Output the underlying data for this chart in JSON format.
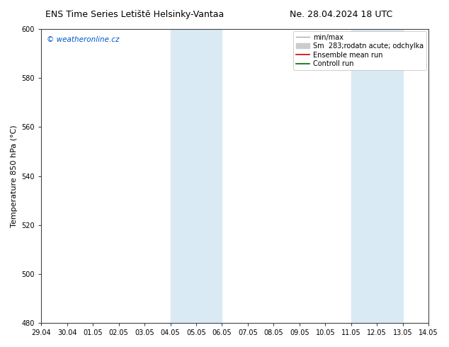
{
  "title_left": "ENS Time Series Letiště Helsinky-Vantaa",
  "title_right": "Ne. 28.04.2024 18 UTC",
  "ylabel": "Temperature 850 hPa (°C)",
  "watermark": "© weatheronline.cz",
  "watermark_color": "#0055cc",
  "ylim": [
    480,
    600
  ],
  "yticks": [
    480,
    500,
    520,
    540,
    560,
    580,
    600
  ],
  "x_labels": [
    "29.04",
    "30.04",
    "01.05",
    "02.05",
    "03.05",
    "04.05",
    "05.05",
    "06.05",
    "07.05",
    "08.05",
    "09.05",
    "10.05",
    "11.05",
    "12.05",
    "13.05",
    "14.05"
  ],
  "x_positions": [
    0,
    1,
    2,
    3,
    4,
    5,
    6,
    7,
    8,
    9,
    10,
    11,
    12,
    13,
    14,
    15
  ],
  "shaded_bands": [
    {
      "xmin": 5,
      "xmax": 7
    },
    {
      "xmin": 12,
      "xmax": 14
    }
  ],
  "shaded_color": "#daeaf5",
  "bg_color": "#ffffff",
  "legend_entries": [
    {
      "label": "min/max",
      "color": "#aaaaaa",
      "lw": 1.0,
      "style": "solid",
      "type": "line"
    },
    {
      "label": "Sm  283;rodatn acute; odchylka",
      "color": "#cccccc",
      "lw": 5,
      "style": "solid",
      "type": "patch"
    },
    {
      "label": "Ensemble mean run",
      "color": "#cc0000",
      "lw": 1.2,
      "style": "solid",
      "type": "line"
    },
    {
      "label": "Controll run",
      "color": "#006600",
      "lw": 1.2,
      "style": "solid",
      "type": "line"
    }
  ],
  "title_fontsize": 9,
  "tick_fontsize": 7,
  "label_fontsize": 8,
  "watermark_fontsize": 7.5,
  "legend_fontsize": 7
}
